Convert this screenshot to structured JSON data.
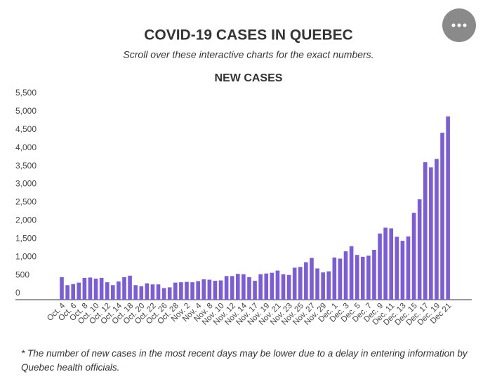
{
  "chart_data": {
    "type": "bar",
    "title": "COVID-19 CASES IN QUEBEC",
    "subtitle": "Scroll over these interactive charts for the exact numbers.",
    "chart_title": "NEW CASES",
    "footnote": "* The number of new cases in the most recent days may be lower due to a delay in entering information by Quebec health officials.",
    "color": "#7b5cd9",
    "grid": false,
    "categories": [
      "Oct. 4",
      null,
      "Oct. 6",
      null,
      "Oct. 8",
      null,
      "Oct. 10",
      null,
      "Oct. 12",
      null,
      "Oct. 14",
      null,
      "Oct. 18",
      null,
      "Oct. 20",
      null,
      "Oct. 22",
      null,
      "Oct. 26",
      null,
      "Oct. 28",
      null,
      "Nov. 2",
      null,
      "Nov. 4",
      null,
      "Nov. 8",
      null,
      "Nov. 10",
      null,
      "Nov. 12",
      null,
      "Nov. 14",
      null,
      "Nov. 17",
      null,
      "Nov. 19",
      null,
      "Nov. 21",
      null,
      "Nov. 23",
      null,
      "Nov. 25",
      null,
      "Nov. 27",
      null,
      "Nov. 29",
      null,
      "Dec. 1",
      null,
      "Dec. 3",
      null,
      "Dec. 5",
      null,
      "Dec. 7",
      null,
      "Dec. 9",
      null,
      "Dec. 11",
      null,
      "Dec. 13",
      null,
      "Dec. 15",
      null,
      "Dec. 17",
      null,
      "Dec. 19",
      null,
      "Dec 21"
    ],
    "values": [
      620,
      400,
      430,
      470,
      600,
      610,
      580,
      600,
      480,
      400,
      500,
      620,
      660,
      400,
      370,
      450,
      420,
      420,
      320,
      340,
      470,
      480,
      490,
      480,
      510,
      560,
      550,
      520,
      530,
      650,
      650,
      710,
      700,
      620,
      520,
      700,
      720,
      740,
      800,
      700,
      680,
      880,
      900,
      1030,
      1150,
      860,
      750,
      780,
      1160,
      1130,
      1330,
      1470,
      1230,
      1180,
      1210,
      1370,
      1820,
      1980,
      1960,
      1730,
      1620,
      1740,
      2390,
      2760,
      3780,
      3640,
      3870,
      4590,
      5040
    ],
    "ylim": [
      0,
      5500
    ],
    "yticks": [
      0,
      500,
      {
        "value": 1000,
        "label": "1,000"
      },
      {
        "value": 1500,
        "label": "1,500"
      },
      {
        "value": 2000,
        "label": "2,000"
      },
      {
        "value": 2500,
        "label": "2,500"
      },
      {
        "value": 3000,
        "label": "3,000"
      },
      {
        "value": 3500,
        "label": "3,500"
      },
      {
        "value": 4000,
        "label": "4,000"
      },
      {
        "value": 4500,
        "label": "4,500"
      },
      {
        "value": 5000,
        "label": "5,000"
      },
      {
        "value": 5500,
        "label": "5,500"
      }
    ]
  }
}
